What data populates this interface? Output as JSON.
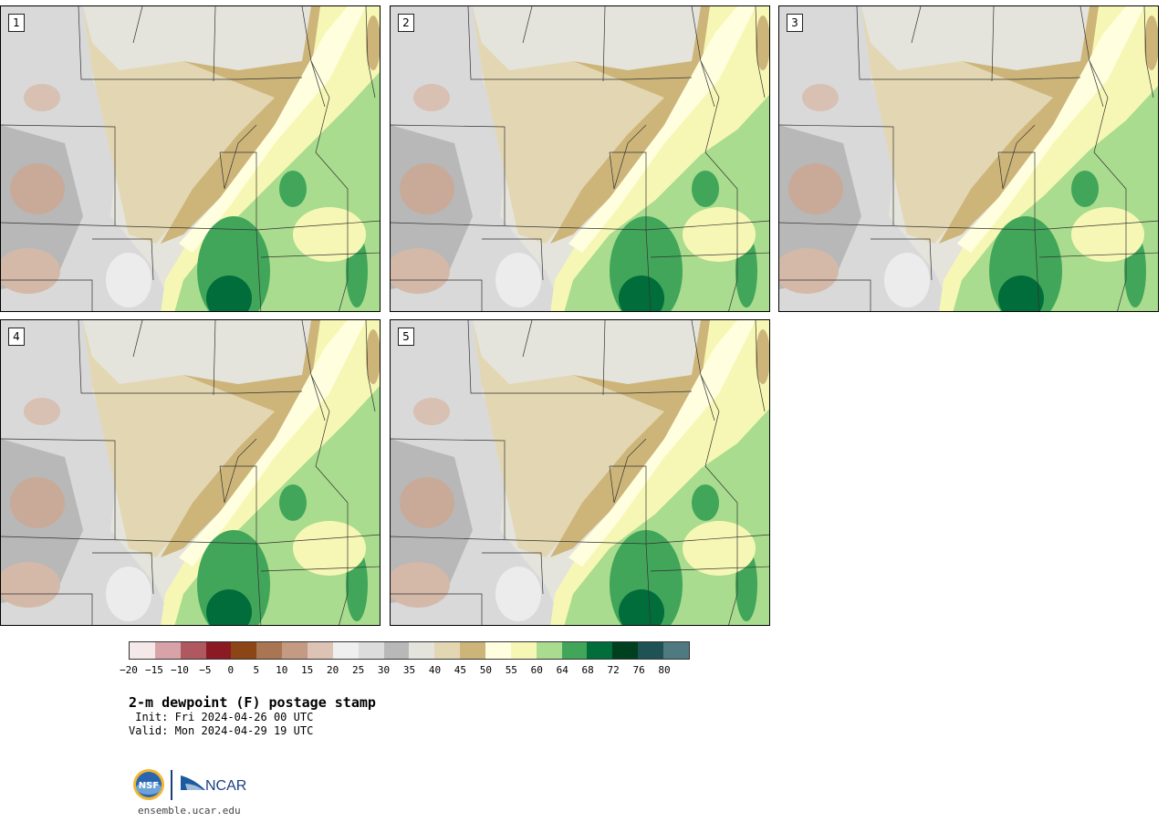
{
  "panels": [
    {
      "label": "1",
      "variant": 1
    },
    {
      "label": "2",
      "variant": 2
    },
    {
      "label": "3",
      "variant": 3
    },
    {
      "label": "4",
      "variant": 4
    },
    {
      "label": "5",
      "variant": 5
    }
  ],
  "colorbar": {
    "colors": [
      "#f4e8e8",
      "#d8a3a8",
      "#b0585f",
      "#8b1a22",
      "#8c4514",
      "#a97552",
      "#c49a82",
      "#ddc3b3",
      "#efefef",
      "#dcdcdc",
      "#b8b8b8",
      "#e4e4dc",
      "#e3d7b3",
      "#cdb57a",
      "#ffffe0",
      "#f7f7b5",
      "#a9dc8e",
      "#41a65a",
      "#006d3a",
      "#00401f",
      "#1e5255",
      "#4f7a80"
    ],
    "tick_labels": [
      "−20",
      "−15",
      "−10",
      "−5",
      "0",
      "5",
      "10",
      "15",
      "20",
      "25",
      "30",
      "35",
      "40",
      "45",
      "50",
      "55",
      "60",
      "64",
      "68",
      "72",
      "76",
      "80"
    ]
  },
  "title": "2-m dewpoint (F) postage stamp",
  "init": " Init: Fri 2024-04-26 00 UTC",
  "valid": "Valid: Mon 2024-04-29 19 UTC",
  "logo_text": {
    "nsf": "NSF",
    "ncar": "NCAR"
  },
  "footer": "ensemble.ucar.edu"
}
